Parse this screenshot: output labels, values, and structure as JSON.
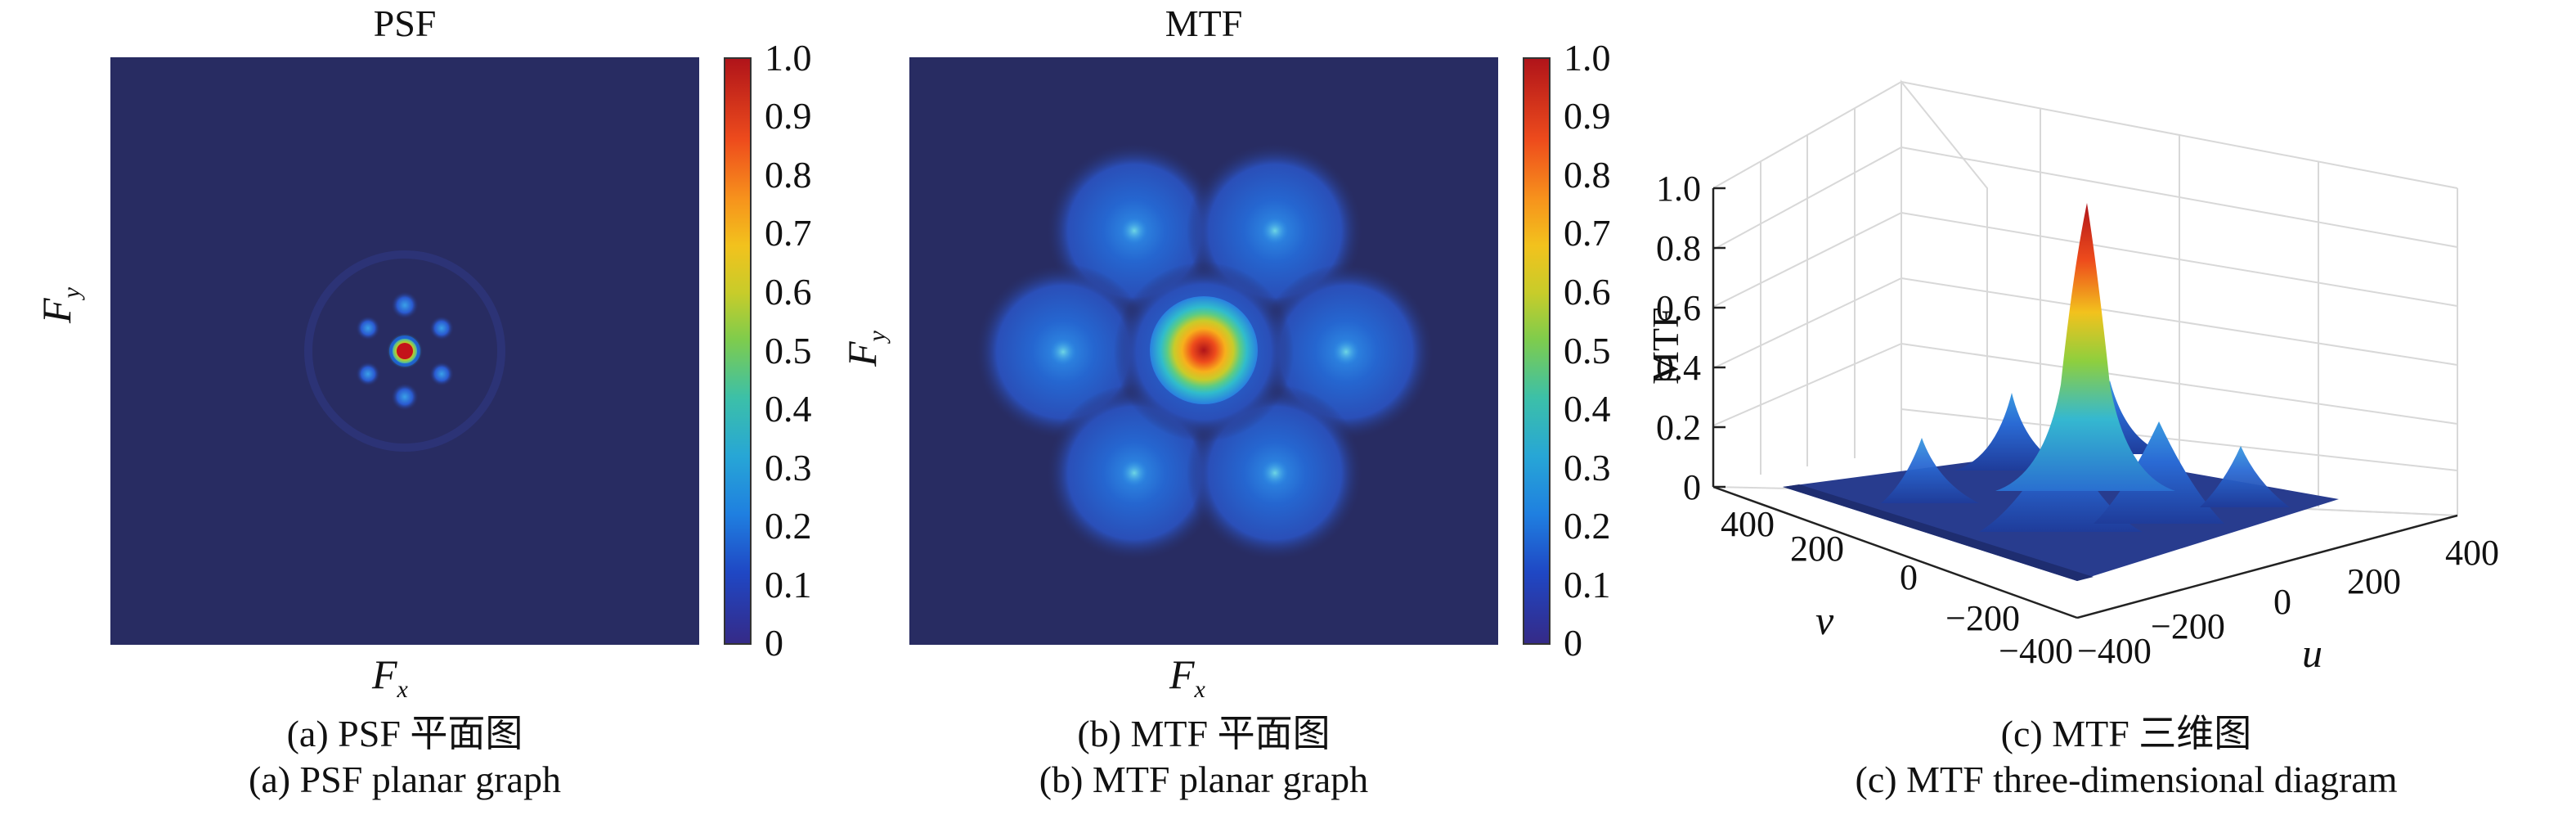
{
  "chart_data": [
    {
      "type": "heatmap",
      "title": "PSF",
      "xlabel": "F",
      "xlabel_sub": "x",
      "ylabel": "F",
      "ylabel_sub": "y",
      "colorbar_ticks": [
        "0",
        "0.1",
        "0.2",
        "0.3",
        "0.4",
        "0.5",
        "0.6",
        "0.7",
        "0.8",
        "0.9",
        "1.0"
      ],
      "colorbar_range": [
        0,
        1
      ],
      "caption_cn": "(a) PSF 平面图",
      "caption_en": "(a) PSF planar graph"
    },
    {
      "type": "heatmap",
      "title": "MTF",
      "xlabel": "F",
      "xlabel_sub": "x",
      "ylabel": "F",
      "ylabel_sub": "y",
      "colorbar_ticks": [
        "0",
        "0.1",
        "0.2",
        "0.3",
        "0.4",
        "0.5",
        "0.6",
        "0.7",
        "0.8",
        "0.9",
        "1.0"
      ],
      "colorbar_range": [
        0,
        1
      ],
      "caption_cn": "(b) MTF 平面图",
      "caption_en": "(b) MTF planar graph"
    },
    {
      "type": "surface",
      "zlabel": "MTF",
      "xlabel": "u",
      "ylabel": "v",
      "z_ticks": [
        "0",
        "0.2",
        "0.4",
        "0.6",
        "0.8",
        "1.0"
      ],
      "u_ticks": [
        "−400",
        "−200",
        "0",
        "200",
        "400"
      ],
      "v_ticks": [
        "−400",
        "−200",
        "0",
        "200",
        "400"
      ],
      "zlim": [
        0,
        1
      ],
      "caption_cn": "(c) MTF 三维图",
      "caption_en": "(c) MTF three-dimensional diagram"
    }
  ]
}
